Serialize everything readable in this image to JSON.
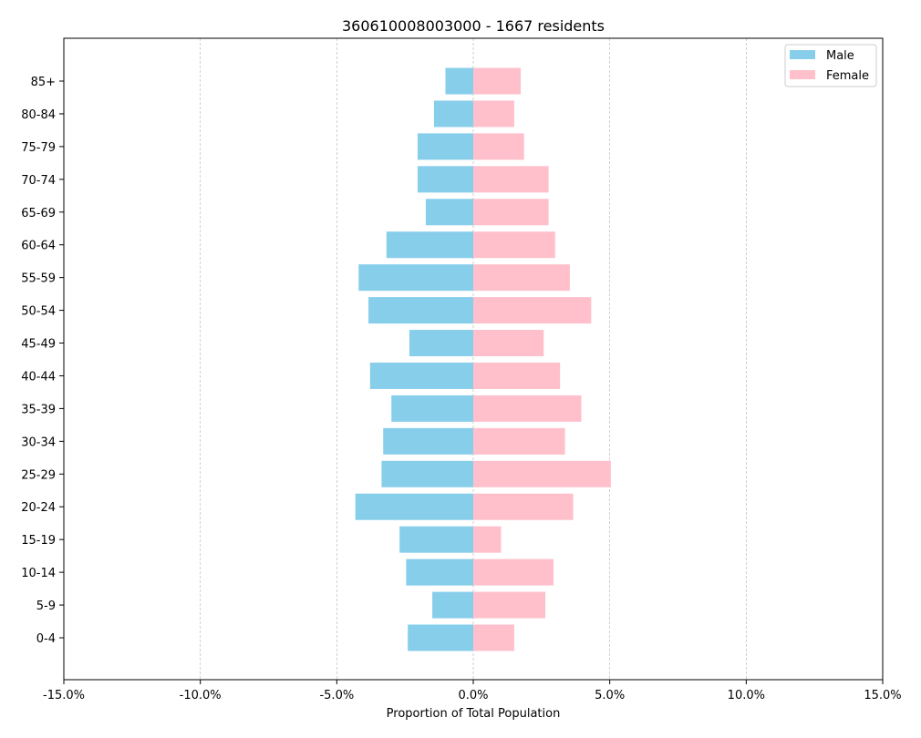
{
  "chart_data": {
    "type": "bar",
    "orientation": "horizontal",
    "title": "360610008003000 - 1667 residents",
    "xlabel": "Proportion of Total Population",
    "ylabel": "",
    "xlim": [
      -15,
      15
    ],
    "x_ticks": [
      -15,
      -10,
      -5,
      0,
      5,
      10,
      15
    ],
    "x_tick_labels": [
      "-15.0%",
      "-10.0%",
      "-5.0%",
      "0.0%",
      "5.0%",
      "10.0%",
      "15.0%"
    ],
    "grid": "vertical-dashed",
    "legend_position": "top-right",
    "categories": [
      "0-4",
      "5-9",
      "10-14",
      "15-19",
      "20-24",
      "25-29",
      "30-34",
      "35-39",
      "40-44",
      "45-49",
      "50-54",
      "55-59",
      "60-64",
      "65-69",
      "70-74",
      "75-79",
      "80-84",
      "85+"
    ],
    "series": [
      {
        "name": "Male",
        "color": "#87ceeb",
        "values": [
          -2.4,
          -1.5,
          -2.46,
          -2.7,
          -4.32,
          -3.36,
          -3.3,
          -3.0,
          -3.78,
          -2.34,
          -3.84,
          -4.2,
          -3.18,
          -1.74,
          -2.04,
          -2.04,
          -1.44,
          -1.02
        ]
      },
      {
        "name": "Female",
        "color": "#ffc0cb",
        "values": [
          1.5,
          2.64,
          2.94,
          1.02,
          3.66,
          5.04,
          3.36,
          3.96,
          3.18,
          2.58,
          4.32,
          3.54,
          3.0,
          2.76,
          2.76,
          1.86,
          1.5,
          1.74
        ]
      }
    ]
  }
}
